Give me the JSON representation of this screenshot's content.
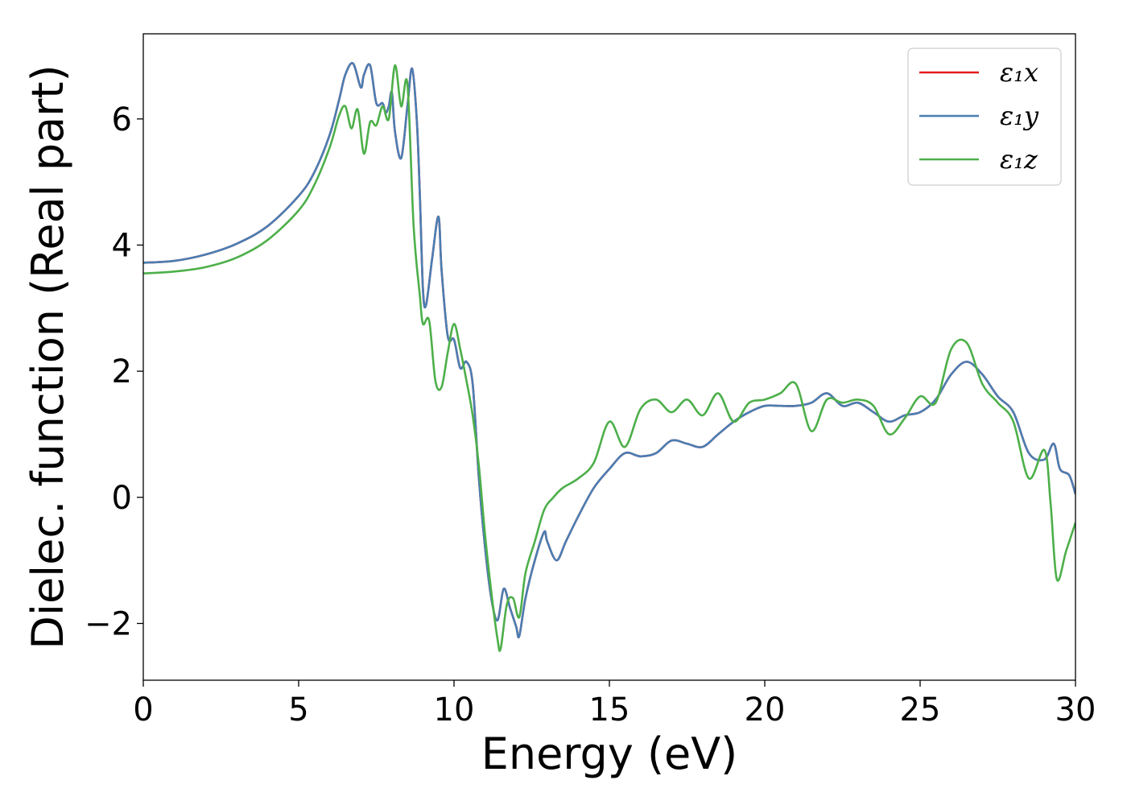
{
  "chart_data": {
    "type": "line",
    "title": "",
    "xlabel": "Energy (eV)",
    "ylabel": "Dielec. function (Real part)",
    "xlim": [
      0,
      30
    ],
    "ylim": [
      -2.9,
      7.35
    ],
    "xticks": [
      0,
      5,
      10,
      15,
      20,
      25,
      30
    ],
    "yticks": [
      -2,
      0,
      2,
      4,
      6
    ],
    "xtick_labels": [
      "0",
      "5",
      "10",
      "15",
      "20",
      "25",
      "30"
    ],
    "ytick_labels": [
      "−2",
      "0",
      "2",
      "4",
      "6"
    ],
    "grid": false,
    "legend_position": "top-right",
    "series": [
      {
        "name": "ε₁x",
        "color": "#e41a1c",
        "x": [
          0,
          1,
          2,
          3,
          4,
          5,
          5.5,
          6,
          6.3,
          6.5,
          6.75,
          7.0,
          7.1,
          7.3,
          7.5,
          7.7,
          7.8,
          7.9,
          8.0,
          8.1,
          8.3,
          8.5,
          8.65,
          8.8,
          8.9,
          9.0,
          9.1,
          9.3,
          9.5,
          9.6,
          9.8,
          10.0,
          10.2,
          10.4,
          10.6,
          10.8,
          11.0,
          11.2,
          11.4,
          11.6,
          11.8,
          12.0,
          12.1,
          12.3,
          12.6,
          12.9,
          13.0,
          13.3,
          13.6,
          14.0,
          14.5,
          15.0,
          15.5,
          16.0,
          16.5,
          17.0,
          17.5,
          18.0,
          18.5,
          19.0,
          19.5,
          20.0,
          20.5,
          21.0,
          21.5,
          22.0,
          22.5,
          23.0,
          23.5,
          24.0,
          24.5,
          25.0,
          25.5,
          26.0,
          26.5,
          27.0,
          27.5,
          28.0,
          28.5,
          29.0,
          29.3,
          29.5,
          29.8,
          30.0
        ],
        "y": [
          3.72,
          3.75,
          3.85,
          4.02,
          4.3,
          4.78,
          5.15,
          5.75,
          6.3,
          6.7,
          6.88,
          6.5,
          6.7,
          6.85,
          6.25,
          6.25,
          6.1,
          6.2,
          6.42,
          5.8,
          5.38,
          6.2,
          6.8,
          6.0,
          4.8,
          3.3,
          3.05,
          3.8,
          4.45,
          3.6,
          2.55,
          2.5,
          2.05,
          2.15,
          1.8,
          0.3,
          -0.8,
          -1.6,
          -1.95,
          -1.45,
          -1.75,
          -2.05,
          -2.2,
          -1.6,
          -1.0,
          -0.55,
          -0.7,
          -1.0,
          -0.7,
          -0.3,
          0.15,
          0.45,
          0.7,
          0.65,
          0.7,
          0.9,
          0.85,
          0.8,
          1.0,
          1.2,
          1.35,
          1.45,
          1.45,
          1.45,
          1.5,
          1.65,
          1.45,
          1.5,
          1.35,
          1.2,
          1.3,
          1.35,
          1.55,
          1.95,
          2.15,
          1.95,
          1.6,
          1.35,
          0.7,
          0.6,
          0.85,
          0.45,
          0.35,
          0.05
        ]
      },
      {
        "name": "ε₁y",
        "color": "#4a7eb3",
        "x": [
          0,
          1,
          2,
          3,
          4,
          5,
          5.5,
          6,
          6.3,
          6.5,
          6.75,
          7.0,
          7.1,
          7.3,
          7.5,
          7.7,
          7.8,
          7.9,
          8.0,
          8.1,
          8.3,
          8.5,
          8.65,
          8.8,
          8.9,
          9.0,
          9.1,
          9.3,
          9.5,
          9.6,
          9.8,
          10.0,
          10.2,
          10.4,
          10.6,
          10.8,
          11.0,
          11.2,
          11.4,
          11.6,
          11.8,
          12.0,
          12.1,
          12.3,
          12.6,
          12.9,
          13.0,
          13.3,
          13.6,
          14.0,
          14.5,
          15.0,
          15.5,
          16.0,
          16.5,
          17.0,
          17.5,
          18.0,
          18.5,
          19.0,
          19.5,
          20.0,
          20.5,
          21.0,
          21.5,
          22.0,
          22.5,
          23.0,
          23.5,
          24.0,
          24.5,
          25.0,
          25.5,
          26.0,
          26.5,
          27.0,
          27.5,
          28.0,
          28.5,
          29.0,
          29.3,
          29.5,
          29.8,
          30.0
        ],
        "y": [
          3.72,
          3.75,
          3.85,
          4.02,
          4.3,
          4.78,
          5.15,
          5.75,
          6.3,
          6.7,
          6.88,
          6.5,
          6.7,
          6.85,
          6.25,
          6.25,
          6.1,
          6.2,
          6.42,
          5.8,
          5.38,
          6.2,
          6.8,
          6.0,
          4.8,
          3.3,
          3.05,
          3.8,
          4.45,
          3.6,
          2.55,
          2.5,
          2.05,
          2.15,
          1.8,
          0.3,
          -0.8,
          -1.6,
          -1.95,
          -1.45,
          -1.75,
          -2.05,
          -2.2,
          -1.6,
          -1.0,
          -0.55,
          -0.7,
          -1.0,
          -0.7,
          -0.3,
          0.15,
          0.45,
          0.7,
          0.65,
          0.7,
          0.9,
          0.85,
          0.8,
          1.0,
          1.2,
          1.35,
          1.45,
          1.45,
          1.45,
          1.5,
          1.65,
          1.45,
          1.5,
          1.35,
          1.2,
          1.3,
          1.35,
          1.55,
          1.95,
          2.15,
          1.95,
          1.6,
          1.35,
          0.7,
          0.6,
          0.85,
          0.45,
          0.35,
          0.05
        ]
      },
      {
        "name": "ε₁z",
        "color": "#4daf4a",
        "x": [
          0,
          1,
          2,
          3,
          4,
          5,
          5.5,
          6,
          6.3,
          6.5,
          6.7,
          6.9,
          7.1,
          7.3,
          7.5,
          7.7,
          7.9,
          8.1,
          8.3,
          8.5,
          8.7,
          8.9,
          9.0,
          9.2,
          9.4,
          9.6,
          9.8,
          10.0,
          10.2,
          10.4,
          10.6,
          10.8,
          11.0,
          11.2,
          11.4,
          11.5,
          11.7,
          11.9,
          12.1,
          12.3,
          12.6,
          12.9,
          13.2,
          13.5,
          14.0,
          14.5,
          15.0,
          15.5,
          16.0,
          16.5,
          17.0,
          17.5,
          18.0,
          18.5,
          19.0,
          19.5,
          20.0,
          20.5,
          21.0,
          21.5,
          22.0,
          22.5,
          23.0,
          23.5,
          24.0,
          24.5,
          25.0,
          25.5,
          26.0,
          26.5,
          27.0,
          27.5,
          28.0,
          28.5,
          29.0,
          29.2,
          29.4,
          29.7,
          30.0
        ],
        "y": [
          3.55,
          3.58,
          3.65,
          3.8,
          4.08,
          4.55,
          4.95,
          5.55,
          6.05,
          6.2,
          5.85,
          6.15,
          5.45,
          5.95,
          5.9,
          6.2,
          6.0,
          6.85,
          6.2,
          6.55,
          4.3,
          3.2,
          2.75,
          2.8,
          1.85,
          1.75,
          2.3,
          2.75,
          2.35,
          1.85,
          1.3,
          0.5,
          -0.6,
          -1.5,
          -2.25,
          -2.4,
          -1.7,
          -1.6,
          -1.9,
          -1.2,
          -0.7,
          -0.2,
          0.0,
          0.15,
          0.3,
          0.55,
          1.2,
          0.8,
          1.4,
          1.55,
          1.35,
          1.55,
          1.3,
          1.65,
          1.2,
          1.5,
          1.55,
          1.65,
          1.8,
          1.05,
          1.55,
          1.5,
          1.55,
          1.45,
          1.0,
          1.25,
          1.6,
          1.5,
          2.35,
          2.45,
          1.8,
          1.5,
          1.2,
          0.3,
          0.75,
          -0.1,
          -1.3,
          -0.85,
          -0.4
        ]
      }
    ]
  }
}
